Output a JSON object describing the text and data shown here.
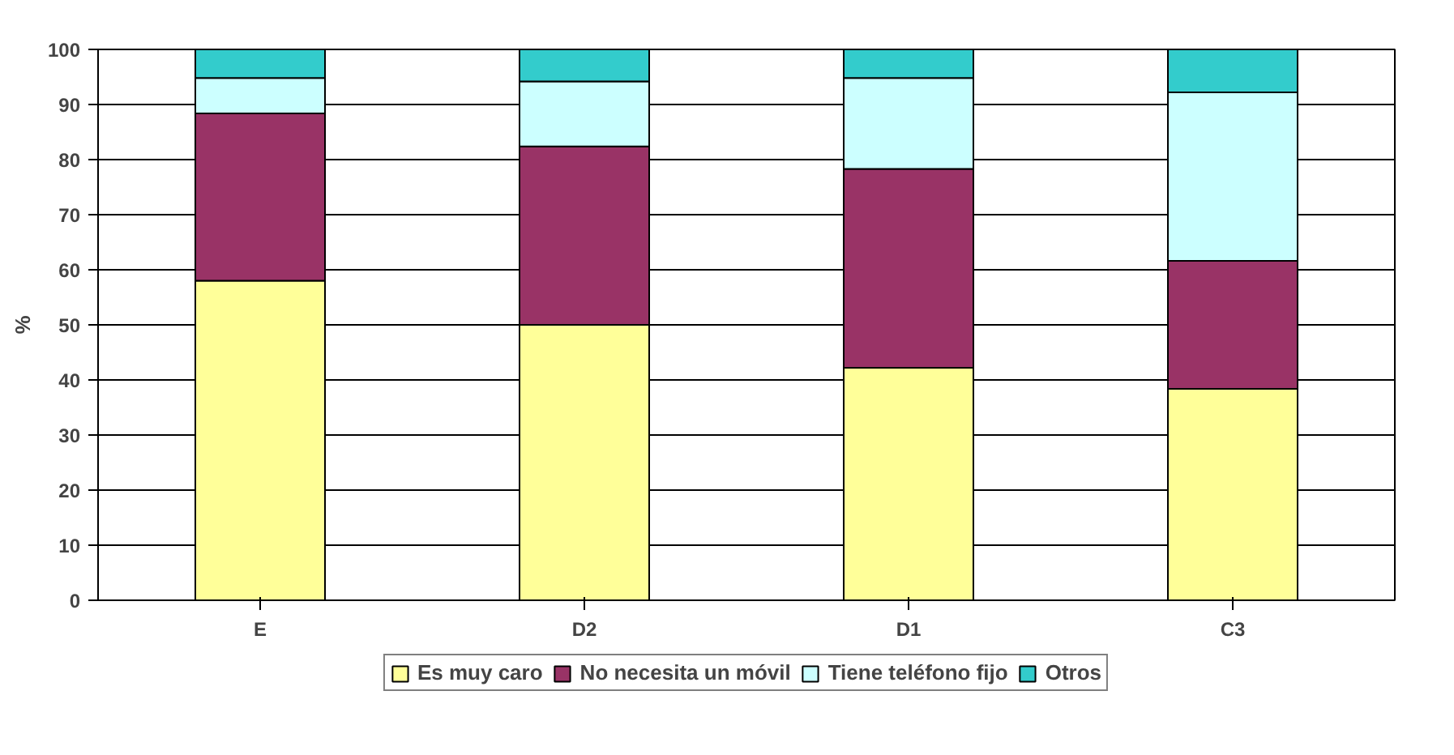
{
  "chart_data": {
    "type": "bar",
    "stacked": true,
    "ylabel": "%",
    "categories": [
      "E",
      "D2",
      "D1",
      "C3"
    ],
    "series": [
      {
        "name": "Es muy caro",
        "color": "#ffff99",
        "values": [
          58,
          50,
          42.2,
          38.4
        ]
      },
      {
        "name": "No necesita un móvil",
        "color": "#993366",
        "values": [
          30.4,
          32.4,
          36.1,
          23.2
        ]
      },
      {
        "name": "Tiene teléfono fijo",
        "color": "#ccffff",
        "values": [
          6.4,
          11.8,
          16.5,
          30.6
        ]
      },
      {
        "name": "Otros",
        "color": "#33cccc",
        "values": [
          5.2,
          5.8,
          5.2,
          7.8
        ]
      }
    ],
    "ylim": [
      0,
      100
    ],
    "yticks": [
      0,
      10,
      20,
      30,
      40,
      50,
      60,
      70,
      80,
      90,
      100
    ],
    "grid": "y",
    "legend": "bottom"
  }
}
